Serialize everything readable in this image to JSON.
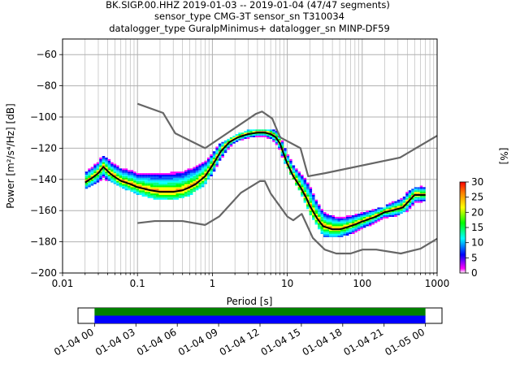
{
  "chart_data": [
    {
      "type": "heatmap",
      "title_lines": [
        "BK.SIGP.00.HHZ   2019-01-03 -- 2019-01-04  (47/47 segments)",
        "sensor_type CMG-3T sensor_sn T310034",
        "datalogger_type GuralpMinimus+ datalogger_sn MINP-DF59"
      ],
      "xlabel": "Period [s]",
      "ylabel": "Power [m²/s⁴/Hz] [dB]",
      "xscale": "log",
      "xlim": [
        0.01,
        1000
      ],
      "ylim": [
        -200,
        -50
      ],
      "grid": true,
      "xtick_labels": [
        "0.01",
        "0.1",
        "1",
        "10",
        "100",
        "1000"
      ],
      "ytick_values": [
        -200,
        -180,
        -160,
        -140,
        -120,
        -100,
        -80,
        -60
      ],
      "colorbar": {
        "label": "[%]",
        "range": [
          0,
          30
        ],
        "ticks": [
          0,
          5,
          10,
          15,
          20,
          25,
          30
        ]
      },
      "series": [
        {
          "name": "",
          "role": "high-noise-model",
          "color": "#666666",
          "x": [
            0.1,
            0.22,
            0.32,
            0.8,
            3.8,
            4.6,
            6.3,
            8,
            15,
            19,
            32,
            320,
            1000
          ],
          "y": [
            -91.5,
            -97.4,
            -110.5,
            -120,
            -98,
            -96.5,
            -101,
            -113,
            -120,
            -138,
            -136,
            -126,
            -112
          ]
        },
        {
          "name": "",
          "role": "low-noise-model",
          "color": "#666666",
          "x": [
            0.1,
            0.17,
            0.4,
            0.8,
            1.24,
            2.4,
            4.3,
            5,
            6,
            10,
            12,
            15.6,
            21.9,
            31.6,
            45,
            70,
            101,
            154,
            328,
            600,
            1000
          ],
          "y": [
            -168,
            -166.7,
            -166.7,
            -169.2,
            -163.7,
            -148.6,
            -141.1,
            -141.1,
            -149,
            -163.8,
            -166.2,
            -162.1,
            -177.5,
            -185,
            -187.5,
            -187.5,
            -185,
            -185,
            -187.5,
            -184.4,
            -178
          ]
        },
        {
          "name": "",
          "role": "mode",
          "color": "#000000",
          "x": [
            0.02,
            0.025,
            0.03,
            0.035,
            0.045,
            0.06,
            0.08,
            0.1,
            0.15,
            0.2,
            0.3,
            0.4,
            0.5,
            0.6,
            0.8,
            1,
            1.3,
            1.7,
            2.2,
            3,
            4,
            5,
            6,
            7,
            8,
            9,
            10,
            12,
            15,
            18,
            20,
            25,
            30,
            40,
            50,
            60,
            80,
            100,
            150,
            200,
            250,
            350,
            400,
            500,
            700
          ],
          "y": [
            -142,
            -139,
            -136,
            -132,
            -137,
            -141,
            -143,
            -145,
            -147,
            -148,
            -148,
            -147,
            -145,
            -143,
            -138,
            -131,
            -122,
            -116,
            -113,
            -111,
            -110,
            -110,
            -111,
            -113,
            -117,
            -124,
            -130,
            -138,
            -145,
            -152,
            -157,
            -165,
            -170,
            -172,
            -172,
            -171,
            -169,
            -167,
            -164,
            -161,
            -160,
            -158,
            -155,
            -150,
            -150
          ]
        },
        {
          "name": "",
          "role": "ppsd-upper-envelope",
          "color": "#ff00ff",
          "x": [
            0.02,
            0.03,
            0.04,
            0.06,
            0.1,
            0.2,
            0.3,
            0.5,
            0.8,
            1,
            1.5,
            2,
            3,
            5,
            7,
            10,
            15,
            20,
            30,
            50,
            100,
            200,
            400,
            700
          ],
          "y": [
            -134,
            -128,
            -125,
            -130,
            -132,
            -131,
            -130,
            -128,
            -125,
            -122,
            -116,
            -113,
            -110,
            -109,
            -110,
            -120,
            -132,
            -138,
            -158,
            -163,
            -162,
            -159,
            -148,
            -145
          ]
        },
        {
          "name": "",
          "role": "ppsd-lower-envelope",
          "color": "#0000ff",
          "x": [
            0.02,
            0.03,
            0.04,
            0.06,
            0.1,
            0.2,
            0.3,
            0.5,
            0.8,
            1,
            1.5,
            2,
            3,
            5,
            7,
            10,
            15,
            20,
            30,
            50,
            100,
            200,
            400,
            700
          ],
          "y": [
            -146,
            -141,
            -140,
            -145,
            -149,
            -153,
            -153,
            -150,
            -143,
            -136,
            -125,
            -119,
            -116,
            -115,
            -118,
            -132,
            -148,
            -162,
            -176,
            -177,
            -172,
            -167,
            -160,
            -154
          ]
        }
      ]
    },
    {
      "type": "timeline",
      "xtick_labels": [
        "01-04 00",
        "01-04 03",
        "01-04 06",
        "01-04 09",
        "01-04 12",
        "01-04 15",
        "01-04 18",
        "01-04 21",
        "01-05 00"
      ],
      "bands": [
        {
          "color": "#008000",
          "start_hour": 0,
          "end_hour": 24
        },
        {
          "color": "#0000ff",
          "start_hour": 0,
          "end_hour": 24
        }
      ],
      "axis_start_hour": -1.2,
      "axis_end_hour": 25.2
    }
  ]
}
